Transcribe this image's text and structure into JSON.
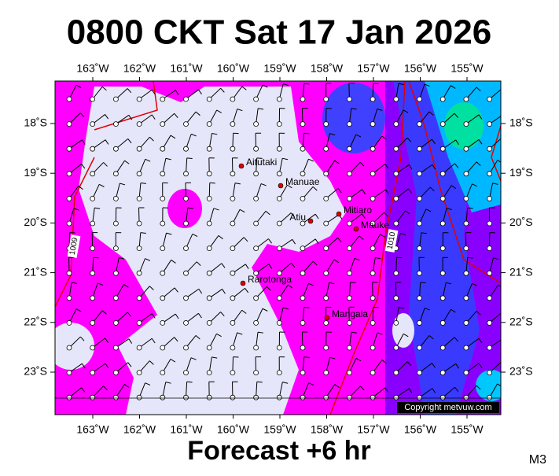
{
  "header": {
    "title": "0800 CKT Sat 17 Jan 2026"
  },
  "map": {
    "lon_labels": [
      "163˚W",
      "162˚W",
      "161˚W",
      "160˚W",
      "159˚W",
      "158˚W",
      "157˚W",
      "156˚W",
      "155˚W"
    ],
    "lat_labels": [
      "18˚S",
      "19˚S",
      "20˚S",
      "21˚S",
      "22˚S",
      "23˚S"
    ],
    "places": [
      "Aitutaki",
      "Manuae",
      "Atiu",
      "Mitiaro",
      "Mauke",
      "Rarotonga",
      "Mangaia"
    ],
    "isobar_labels": [
      "1009",
      "1010"
    ],
    "copyright": "Copyright metvuw.com"
  },
  "footer": {
    "subtitle": "Forecast +6 hr",
    "code": "M3"
  }
}
